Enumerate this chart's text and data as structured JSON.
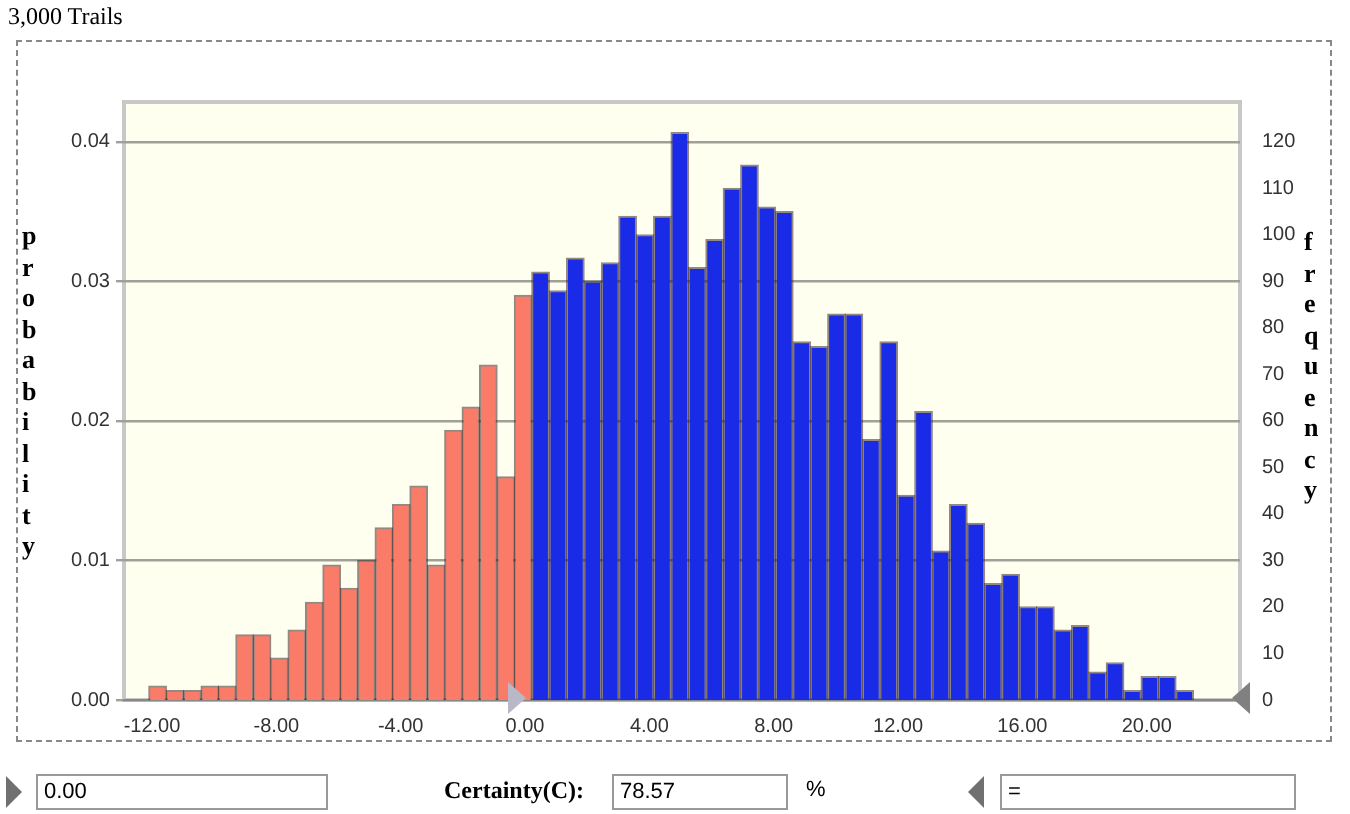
{
  "chart_data": {
    "type": "histogram",
    "title": "3,000 Trails",
    "ylabel": "probability",
    "y2label": "frequency",
    "bins": [
      -12.1,
      -11.54,
      -10.98,
      -10.42,
      -9.86,
      -9.3,
      -8.74,
      -8.18,
      -7.62,
      -7.06,
      -6.5,
      -5.94,
      -5.38,
      -4.82,
      -4.26,
      -3.7,
      -3.14,
      -2.58,
      -2.02,
      -1.46,
      -0.9,
      -0.34,
      0.22,
      0.78,
      1.34,
      1.9,
      2.46,
      3.02,
      3.58,
      4.14,
      4.7,
      5.26,
      5.82,
      6.38,
      6.94,
      7.5,
      8.06,
      8.62,
      9.18,
      9.74,
      10.3,
      10.86,
      11.42,
      11.98,
      12.54,
      13.1,
      13.66,
      14.22,
      14.78,
      15.34,
      15.9,
      16.46,
      17.02,
      17.58,
      18.14,
      18.7,
      19.26,
      19.82,
      20.38,
      20.94,
      21.5
    ],
    "series": [
      {
        "color": "#fa7b68",
        "axis": "y2",
        "values": [
          3,
          2,
          2,
          3,
          3,
          14,
          14,
          9,
          15,
          21,
          29,
          24,
          30,
          37,
          42,
          46,
          29,
          58,
          63,
          72,
          48,
          87,
          null,
          null,
          null,
          null,
          null,
          null,
          null,
          null,
          null,
          null,
          null,
          null,
          null,
          null,
          null,
          null,
          null,
          null,
          null,
          null,
          null,
          null,
          null,
          null,
          null,
          null,
          null,
          null,
          null,
          null,
          null,
          null,
          null,
          null,
          null,
          null,
          null,
          null
        ]
      },
      {
        "color": "#1a2be8",
        "axis": "y2",
        "values": [
          null,
          null,
          null,
          null,
          null,
          null,
          null,
          null,
          null,
          null,
          null,
          null,
          null,
          null,
          null,
          null,
          null,
          null,
          null,
          null,
          null,
          null,
          92,
          88,
          95,
          90,
          94,
          104,
          100,
          104,
          122,
          93,
          99,
          110,
          115,
          106,
          105,
          77,
          76,
          83,
          83,
          56,
          77,
          44,
          62,
          32,
          42,
          38,
          25,
          27,
          20,
          20,
          15,
          16,
          6,
          8,
          2,
          5,
          5,
          2
        ]
      }
    ],
    "xlim": [
      -12.9,
      23
    ],
    "xticks": [
      {
        "value": -12,
        "label": "-12.00"
      },
      {
        "value": -8,
        "label": "-8.00"
      },
      {
        "value": -4,
        "label": "-4.00"
      },
      {
        "value": 0,
        "label": "0.00"
      },
      {
        "value": 4,
        "label": "4.00"
      },
      {
        "value": 8,
        "label": "8.00"
      },
      {
        "value": 12,
        "label": "12.00"
      },
      {
        "value": 16,
        "label": "16.00"
      },
      {
        "value": 20,
        "label": "20.00"
      }
    ],
    "ylim": [
      0,
      0.04286
    ],
    "yticks": [
      {
        "value": 0,
        "label": "0.00"
      },
      0.01,
      0.02,
      0.03,
      0.04
    ],
    "y2lim": [
      0,
      128.6
    ],
    "y2ticks": [
      0,
      10,
      20,
      30,
      40,
      50,
      60,
      70,
      80,
      90,
      100,
      110,
      120
    ],
    "grid": "y",
    "legend": false,
    "annotations": [
      "0.00",
      "Certainty(C):",
      "78.57",
      "%",
      "="
    ]
  }
}
